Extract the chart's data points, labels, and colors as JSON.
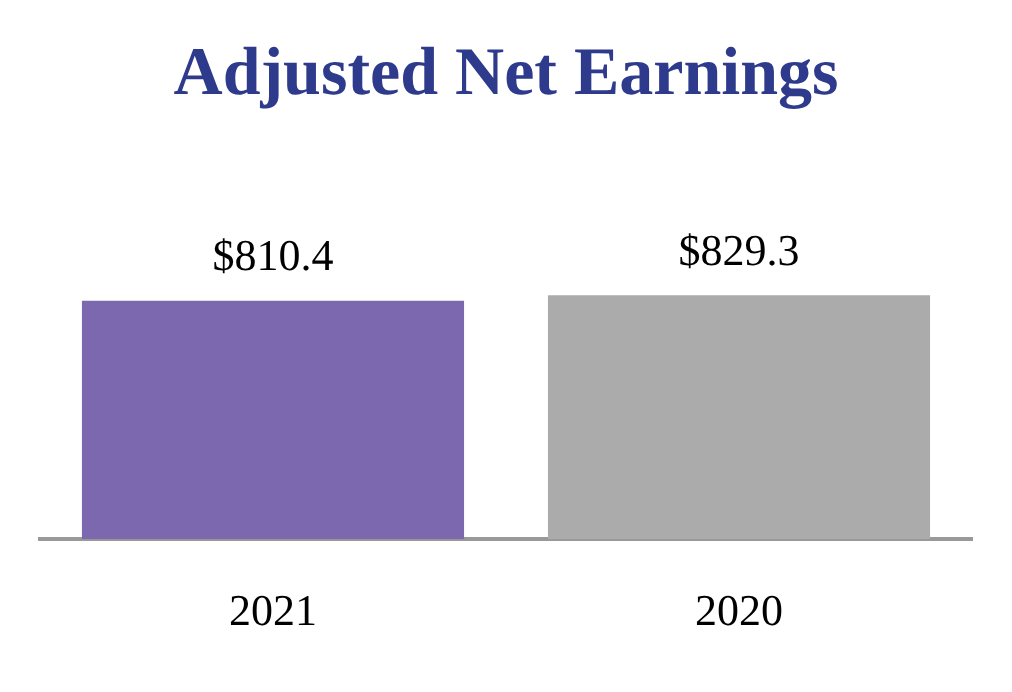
{
  "chart_data": {
    "type": "bar",
    "title": "Adjusted Net Earnings",
    "categories": [
      "2021",
      "2020"
    ],
    "values": [
      810.4,
      829.3
    ],
    "colors": [
      "#7b68ae",
      "#ababab"
    ],
    "value_labels": [
      "$810.4",
      "$829.3"
    ]
  }
}
